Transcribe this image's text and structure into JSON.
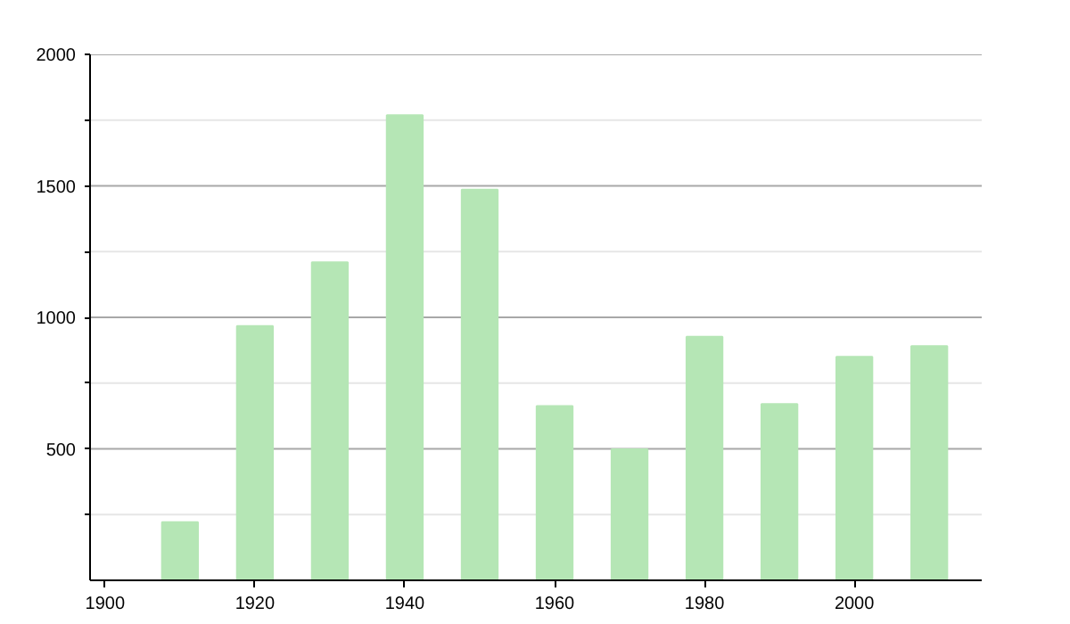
{
  "chart_data": {
    "type": "bar",
    "x": [
      1910,
      1920,
      1930,
      1940,
      1950,
      1960,
      1970,
      1980,
      1990,
      2000,
      2010
    ],
    "values": [
      221,
      967,
      1209,
      1769,
      1486,
      663,
      498,
      926,
      670,
      850,
      891
    ],
    "color": "#b5e6b5",
    "xlim": [
      1898,
      2017
    ],
    "xticks": [
      1900,
      1920,
      1940,
      1960,
      1980,
      2000
    ],
    "ylim": [
      0,
      2000
    ],
    "yticks": [
      {
        "value": 250,
        "label": null
      },
      500,
      {
        "value": 750,
        "label": null
      },
      1000,
      {
        "value": 1250,
        "label": null
      },
      1500,
      {
        "value": 1750,
        "label": null
      },
      2000
    ],
    "grid": "y"
  }
}
